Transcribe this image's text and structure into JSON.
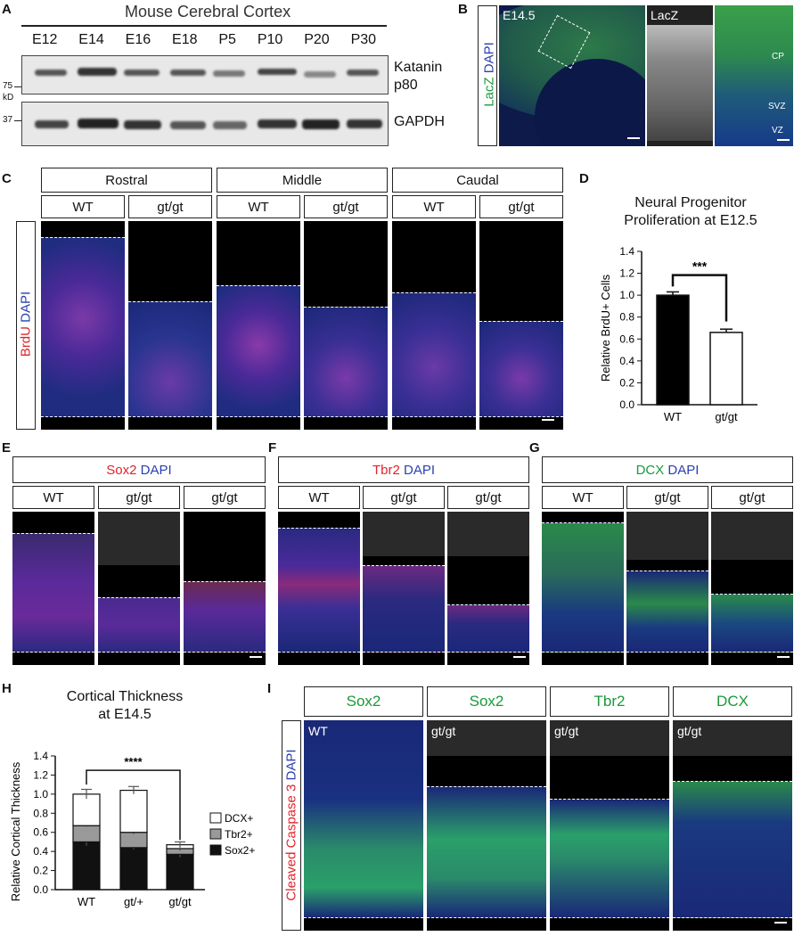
{
  "panels": {
    "A": "A",
    "B": "B",
    "C": "C",
    "D": "D",
    "E": "E",
    "F": "F",
    "G": "G",
    "H": "H",
    "I": "I"
  },
  "panel_a": {
    "title": "Mouse Cerebral Cortex",
    "lanes": [
      "E12",
      "E14",
      "E16",
      "E18",
      "P5",
      "P10",
      "P20",
      "P30"
    ],
    "blot1_label_1": "Katanin",
    "blot1_label_2": "p80",
    "blot2_label": "GAPDH",
    "marker_75": "75",
    "marker_kd": "kD",
    "marker_37": "37"
  },
  "panel_b": {
    "stain_green": "LacZ",
    "stain_blue": "DAPI",
    "age": "E14.5",
    "inset_label": "LacZ",
    "layers": [
      "CP",
      "SVZ",
      "VZ"
    ]
  },
  "panel_c": {
    "regions": [
      "Rostral",
      "Middle",
      "Caudal"
    ],
    "genotypes": [
      "WT",
      "gt/gt",
      "WT",
      "gt/gt",
      "WT",
      "gt/gt"
    ],
    "stain_red": "BrdU",
    "stain_blue": "DAPI"
  },
  "panel_e": {
    "stain_red": "Sox2",
    "stain_blue": "DAPI",
    "genotypes": [
      "WT",
      "gt/gt",
      "gt/gt"
    ]
  },
  "panel_f": {
    "stain_red": "Tbr2",
    "stain_blue": "DAPI",
    "genotypes": [
      "WT",
      "gt/gt",
      "gt/gt"
    ]
  },
  "panel_g": {
    "stain_green": "DCX",
    "stain_blue": "DAPI",
    "genotypes": [
      "WT",
      "gt/gt",
      "gt/gt"
    ]
  },
  "panel_i": {
    "markers": [
      "Sox2",
      "Sox2",
      "Tbr2",
      "DCX"
    ],
    "genotypes": [
      "WT",
      "gt/gt",
      "gt/gt",
      "gt/gt"
    ],
    "side_red": "Cleaved Caspase 3",
    "side_blue": "DAPI"
  },
  "chart_data": [
    {
      "type": "bar",
      "title": "Neural Progenitor Proliferation at E12.5",
      "title_line1": "Neural Progenitor",
      "title_line2": "Proliferation at E12.5",
      "ylabel": "Relative BrdU+ Cells",
      "categories": [
        "WT",
        "gt/gt"
      ],
      "values": [
        1.0,
        0.66
      ],
      "errors": [
        0.03,
        0.03
      ],
      "ylim": [
        0,
        1.4
      ],
      "yticks": [
        "0.0",
        "0.2",
        "0.4",
        "0.6",
        "0.8",
        "1.0",
        "1.2",
        "1.4"
      ],
      "significance": "***",
      "colors": [
        "#000000",
        "#ffffff"
      ]
    },
    {
      "type": "bar",
      "title": "Cortical Thickness at E14.5",
      "title_line1": "Cortical Thickness",
      "title_line2": "at E14.5",
      "ylabel": "Relative Cortical Thickness",
      "categories": [
        "WT",
        "gt/+",
        "gt/gt"
      ],
      "stacked": true,
      "series": [
        {
          "name": "Sox2+",
          "values": [
            0.5,
            0.44,
            0.37
          ],
          "errors": [
            0.04,
            0.02,
            0.03
          ],
          "color": "#111111"
        },
        {
          "name": "Tbr2+",
          "values": [
            0.17,
            0.16,
            0.06
          ],
          "errors": [
            0.01,
            0.02,
            0.02
          ],
          "color": "#999999"
        },
        {
          "name": "DCX+",
          "values": [
            0.33,
            0.44,
            0.04
          ],
          "errors": [
            0.05,
            0.04,
            0.03
          ],
          "color": "#ffffff"
        }
      ],
      "legend": [
        "DCX+",
        "Tbr2+",
        "Sox2+"
      ],
      "ylim": [
        0,
        1.4
      ],
      "yticks": [
        "0.0",
        "0.2",
        "0.4",
        "0.6",
        "0.8",
        "1.0",
        "1.2",
        "1.4"
      ],
      "significance": "****"
    }
  ]
}
